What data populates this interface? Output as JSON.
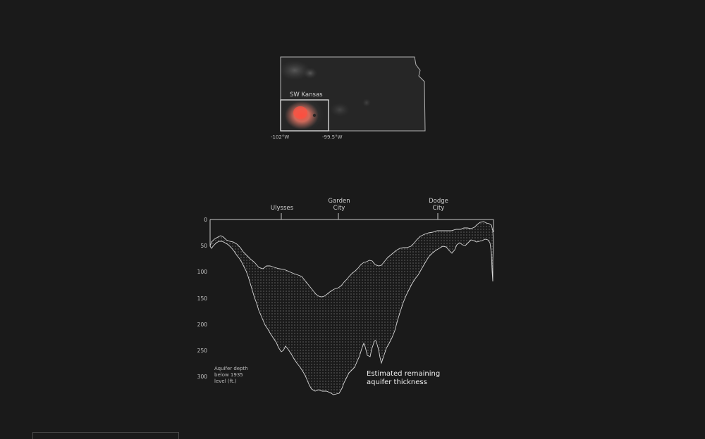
{
  "map": {
    "region_label": "SW Kansas",
    "lon_labels": [
      "-102°W",
      "-99.5°W"
    ],
    "colors": {
      "outline": "#b0b0b0",
      "hot": "#ff6a5a",
      "warm": "#d8786a",
      "cool": "#5a5a5a"
    }
  },
  "profile": {
    "cities": [
      {
        "name_line1": "Ulysses",
        "name_line2": ""
      },
      {
        "name_line1": "Garden",
        "name_line2": "City"
      },
      {
        "name_line1": "Dodge",
        "name_line2": "City"
      }
    ],
    "y_ticks": [
      "0",
      "50",
      "100",
      "150",
      "200",
      "250",
      "300"
    ],
    "axis_note": [
      "Aquifer depth",
      "below 1935",
      "level (ft.)"
    ],
    "annotation": [
      "Estimated remaining",
      "aquifer thickness"
    ]
  },
  "colors": {
    "background": "#1a1a1a",
    "line": "#d0d0d0",
    "dots": "#bdbdbd"
  }
}
